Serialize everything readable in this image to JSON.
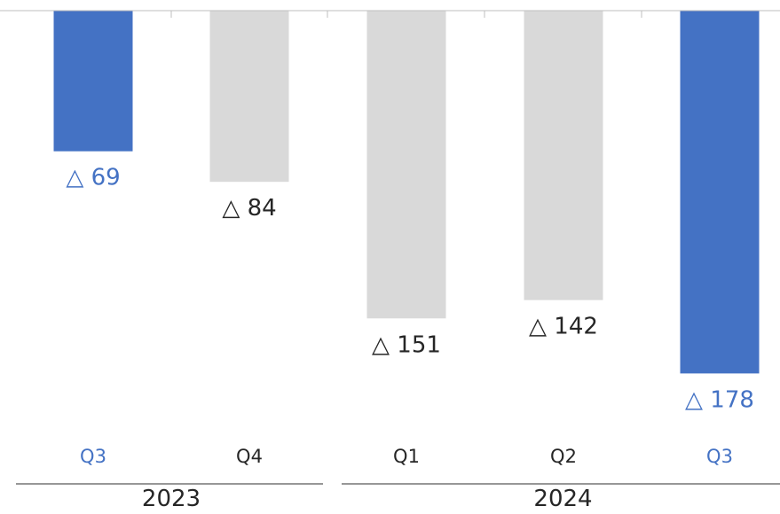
{
  "chart_data": {
    "type": "bar",
    "orientation": "downward",
    "categories": [
      "Q3",
      "Q4",
      "Q1",
      "Q2",
      "Q3"
    ],
    "groups": [
      {
        "label": "2023",
        "categories": [
          "Q3",
          "Q4"
        ]
      },
      {
        "label": "2024",
        "categories": [
          "Q1",
          "Q2",
          "Q3"
        ]
      }
    ],
    "values": [
      -69,
      -84,
      -151,
      -142,
      -178
    ],
    "labels": [
      "△ 69",
      "△ 84",
      "△ 151",
      "△ 142",
      "△ 178"
    ],
    "highlight": [
      true,
      false,
      false,
      false,
      true
    ],
    "colors": {
      "highlight": "#4472C4",
      "default": "#D9D9D9",
      "label_default": "#262626",
      "axis": "#BFBFBF",
      "group_line": "#595959"
    },
    "ylim": [
      -180,
      0
    ],
    "grid": false,
    "legend": "none"
  }
}
